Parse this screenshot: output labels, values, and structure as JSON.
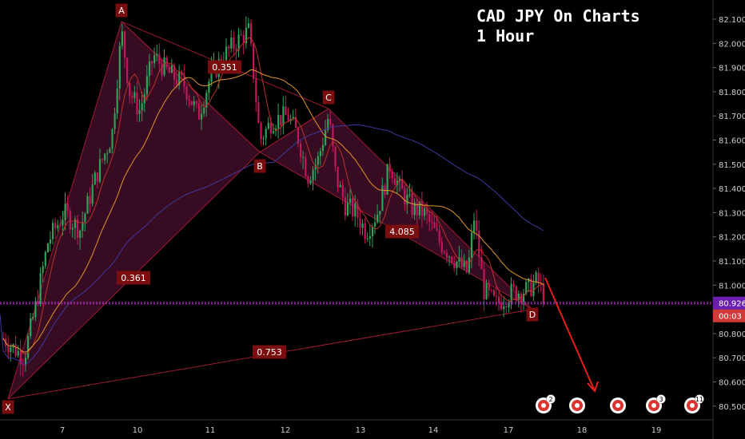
{
  "chart_data": {
    "type": "candlestick",
    "title_line1": "CAD JPY On Charts",
    "title_line2": "1 Hour",
    "ylim": [
      80.45,
      82.17
    ],
    "y_ticks": [
      "82.100",
      "82.000",
      "81.900",
      "81.800",
      "81.700",
      "81.600",
      "81.500",
      "81.400",
      "81.300",
      "81.200",
      "81.100",
      "81.000",
      "80.900",
      "80.800",
      "80.700",
      "80.600",
      "80.500"
    ],
    "x_ticks": [
      "7",
      "10",
      "11",
      "12",
      "13",
      "14",
      "17",
      "18",
      "19"
    ],
    "last_price": "80.926",
    "countdown": "00:03",
    "harmonic_points": [
      {
        "label": "X",
        "price": 80.53
      },
      {
        "label": "A",
        "price": 82.09
      },
      {
        "label": "B",
        "price": 81.55
      },
      {
        "label": "C",
        "price": 81.73
      },
      {
        "label": "D",
        "price": 80.9
      }
    ],
    "ratio_labels": [
      "0.351",
      "0.361",
      "4.085",
      "0.753"
    ],
    "ma_series": [
      {
        "color": "#b8332a"
      },
      {
        "color": "#e0952e"
      },
      {
        "color": "#3a3a9e"
      }
    ],
    "event_badges": [
      "2",
      "",
      "",
      "3",
      "11"
    ],
    "colors": {
      "up": "#2fa35a",
      "down": "#c2185b",
      "pattern_fill": "#4a0f2c",
      "pattern_line": "#9b1b30",
      "price_line": "#c23bd6",
      "arrow": "#e51e1e",
      "label_bg": "#7a0d0d"
    }
  }
}
